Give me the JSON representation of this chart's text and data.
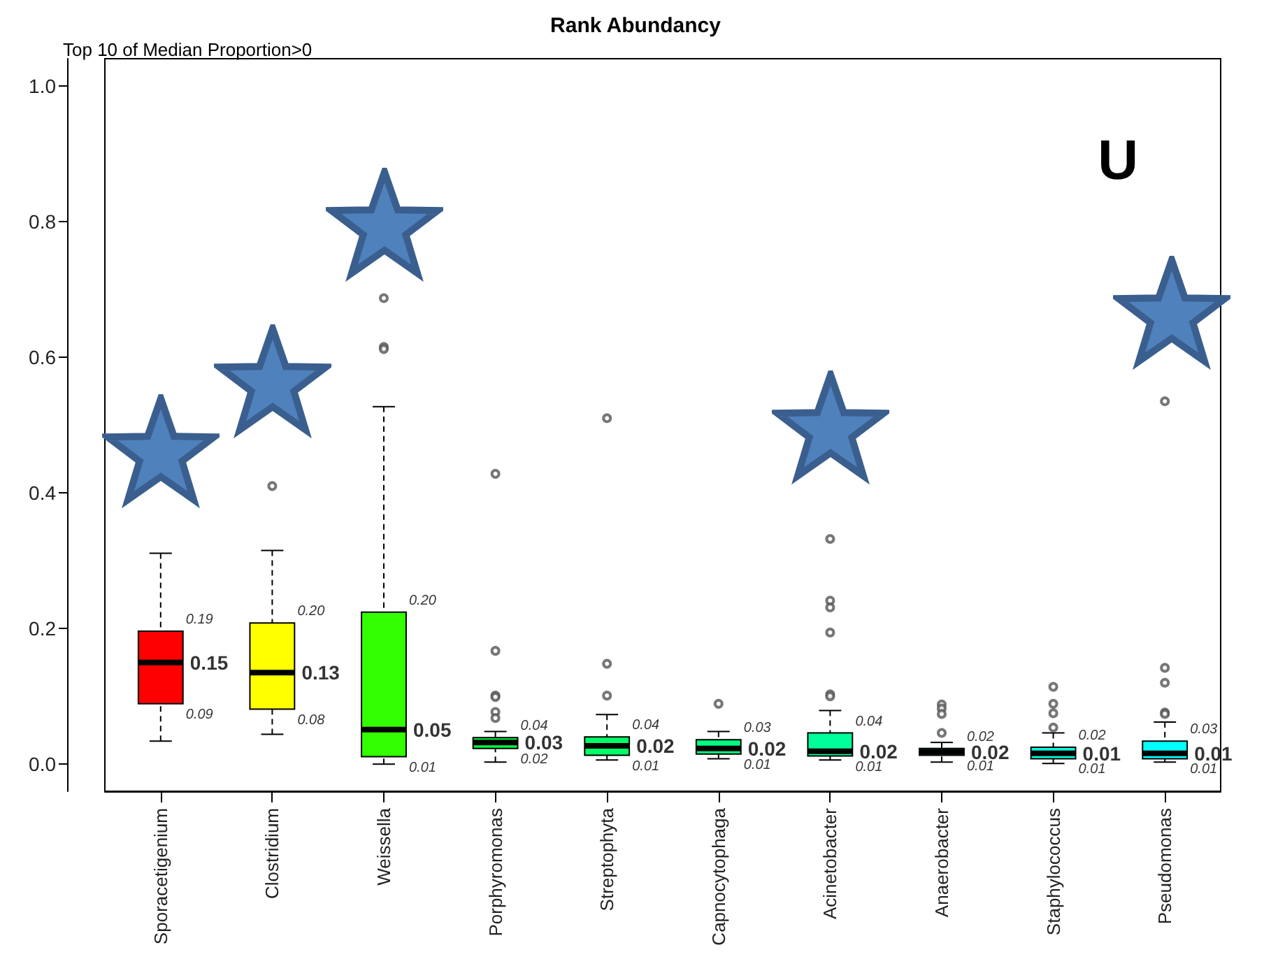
{
  "chart_data": {
    "type": "box",
    "title": "Rank Abundancy",
    "subtitle": "Top 10 of Median Proportion>0",
    "categories": [
      "Sporacetigenium",
      "Clostridium",
      "Weissella",
      "Porphyromonas",
      "Streptophyta",
      "Capnocytophaga",
      "Acinetobacter",
      "Anaerobacter",
      "Staphylococcus",
      "Pseudomonas"
    ],
    "colors": [
      "#ff0000",
      "#ffff00",
      "#33ff00",
      "#00ff40",
      "#00ff66",
      "#00ff80",
      "#00ff99",
      "#00ffbb",
      "#00ffdd",
      "#00ffff"
    ],
    "boxes": [
      {
        "low": 0.034,
        "q1": 0.089,
        "median": 0.15,
        "q3": 0.196,
        "high": 0.311
      },
      {
        "low": 0.044,
        "q1": 0.081,
        "median": 0.135,
        "q3": 0.208,
        "high": 0.315,
        "outliers": [
          0.41
        ]
      },
      {
        "low": 0.0,
        "q1": 0.011,
        "median": 0.051,
        "q3": 0.224,
        "high": 0.527,
        "outliers": [
          0.687,
          0.615,
          0.612
        ]
      },
      {
        "low": 0.003,
        "q1": 0.023,
        "median": 0.032,
        "q3": 0.039,
        "high": 0.048,
        "outliers": [
          0.428,
          0.167,
          0.101,
          0.099,
          0.077,
          0.068
        ]
      },
      {
        "low": 0.006,
        "q1": 0.013,
        "median": 0.027,
        "q3": 0.04,
        "high": 0.073,
        "outliers": [
          0.51,
          0.148,
          0.101
        ]
      },
      {
        "low": 0.008,
        "q1": 0.015,
        "median": 0.023,
        "q3": 0.036,
        "high": 0.048,
        "outliers": [
          0.089
        ]
      },
      {
        "low": 0.006,
        "q1": 0.012,
        "median": 0.019,
        "q3": 0.046,
        "high": 0.079,
        "outliers": [
          0.332,
          0.241,
          0.231,
          0.194,
          0.103,
          0.1
        ]
      },
      {
        "low": 0.003,
        "q1": 0.013,
        "median": 0.018,
        "q3": 0.023,
        "high": 0.032,
        "outliers": [
          0.088,
          0.082,
          0.074,
          0.046
        ]
      },
      {
        "low": 0.001,
        "q1": 0.008,
        "median": 0.016,
        "q3": 0.025,
        "high": 0.046,
        "outliers": [
          0.114,
          0.089,
          0.075,
          0.054
        ]
      },
      {
        "low": 0.003,
        "q1": 0.008,
        "median": 0.016,
        "q3": 0.034,
        "high": 0.062,
        "outliers": [
          0.535,
          0.142,
          0.12,
          0.076,
          0.074
        ]
      }
    ],
    "ylim": [
      -0.04,
      1.04
    ],
    "yticks": [
      {
        "value": 0,
        "label": "0.0"
      },
      0.2,
      0.4,
      0.6,
      0.8,
      {
        "value": 1,
        "label": "1.0"
      }
    ],
    "annotations": [
      "U",
      {
        "text": "0.19",
        "x": "Sporacetigenium",
        "y": 0.196
      },
      {
        "text": "0.15",
        "x": "Sporacetigenium",
        "y": 0.15
      },
      {
        "text": "0.09",
        "x": "Sporacetigenium",
        "y": 0.089
      },
      {
        "text": "0.20",
        "x": "Clostridium",
        "y": 0.208
      },
      {
        "text": "0.13",
        "x": "Clostridium",
        "y": 0.135
      },
      {
        "text": "0.08",
        "x": "Clostridium",
        "y": 0.081
      },
      {
        "text": "0.20",
        "x": "Weissella",
        "y": 0.224
      },
      {
        "text": "0.05",
        "x": "Weissella",
        "y": 0.051
      },
      {
        "text": "0.01",
        "x": "Weissella",
        "y": 0.011
      },
      {
        "text": "0.04",
        "x": "Porphyromonas",
        "y": 0.039
      },
      {
        "text": "0.03",
        "x": "Porphyromonas",
        "y": 0.032
      },
      {
        "text": "0.02",
        "x": "Porphyromonas",
        "y": 0.023
      },
      {
        "text": "0.04",
        "x": "Streptophyta",
        "y": 0.04
      },
      {
        "text": "0.02",
        "x": "Streptophyta",
        "y": 0.027
      },
      {
        "text": "0.01",
        "x": "Streptophyta",
        "y": 0.013
      },
      {
        "text": "0.03",
        "x": "Capnocytophaga",
        "y": 0.036
      },
      {
        "text": "0.02",
        "x": "Capnocytophaga",
        "y": 0.023
      },
      {
        "text": "0.01",
        "x": "Capnocytophaga",
        "y": 0.015
      },
      {
        "text": "0.04",
        "x": "Acinetobacter",
        "y": 0.046
      },
      {
        "text": "0.02",
        "x": "Acinetobacter",
        "y": 0.019
      },
      {
        "text": "0.01",
        "x": "Acinetobacter",
        "y": 0.012
      },
      {
        "text": "0.02",
        "x": "Anaerobacter",
        "y": 0.023
      },
      {
        "text": "0.02",
        "x": "Anaerobacter",
        "y": 0.018
      },
      {
        "text": "0.01",
        "x": "Anaerobacter",
        "y": 0.013
      },
      {
        "text": "0.02",
        "x": "Staphylococcus",
        "y": 0.025
      },
      {
        "text": "0.01",
        "x": "Staphylococcus",
        "y": 0.016
      },
      {
        "text": "0.01",
        "x": "Staphylococcus",
        "y": 0.008
      },
      {
        "text": "0.03",
        "x": "Pseudomonas",
        "y": 0.034
      },
      {
        "text": "0.01",
        "x": "Pseudomonas",
        "y": 0.016
      },
      {
        "text": "0.01",
        "x": "Pseudomonas",
        "y": 0.008
      }
    ]
  }
}
